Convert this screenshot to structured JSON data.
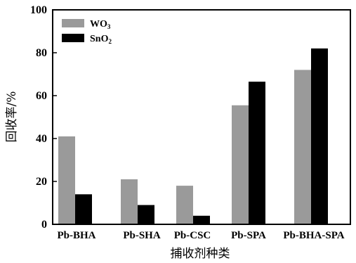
{
  "colors": {
    "wo3": "#9a9a9a",
    "sno2": "#000000"
  },
  "chart_data": {
    "type": "bar",
    "categories": [
      "Pb-BHA",
      "Pb-SHA",
      "Pb-CSC",
      "Pb-SPA",
      "Pb-BHA-SPA"
    ],
    "series": [
      {
        "name": "WO3",
        "legend_main": "WO",
        "legend_sub": "3",
        "color": "#9a9a9a",
        "values": [
          41,
          21,
          18,
          55.5,
          72
        ]
      },
      {
        "name": "SnO2",
        "legend_main": "SnO",
        "legend_sub": "2",
        "color": "#000000",
        "values": [
          14,
          9,
          4,
          66.5,
          82
        ]
      }
    ],
    "xlabel": "捕收剂种类",
    "ylabel": "回收率/%",
    "ylim": [
      0,
      100
    ],
    "yticks": [
      0,
      20,
      40,
      60,
      80,
      100
    ],
    "legend_position": "top-left",
    "grid": false
  }
}
